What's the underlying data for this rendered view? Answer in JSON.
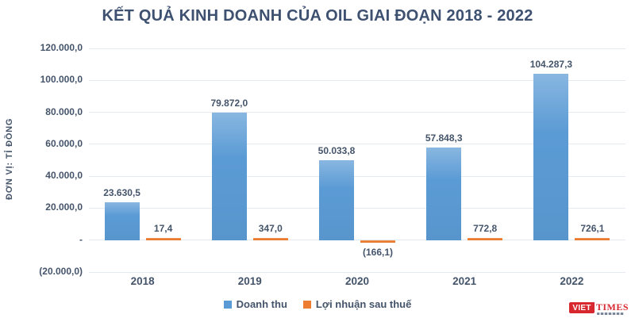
{
  "chart_data": {
    "type": "bar",
    "title": "KẾT QUẢ KINH DOANH CỦA OIL GIAI ĐOẠN 2018 - 2022",
    "ylabel": "ĐƠN VỊ: TỈ ĐỒNG",
    "xlabel": "",
    "categories": [
      "2018",
      "2019",
      "2020",
      "2021",
      "2022"
    ],
    "series": [
      {
        "name": "Doanh thu",
        "color": "#5B9BD5",
        "values": [
          23630.5,
          79872.0,
          50033.8,
          57848.3,
          104287.3
        ],
        "labels": [
          "23.630,5",
          "79.872,0",
          "50.033,8",
          "57.848,3",
          "104.287,3"
        ]
      },
      {
        "name": "Lợi nhuận sau thuế",
        "color": "#ED7D31",
        "values": [
          17.4,
          347.0,
          -166.1,
          772.8,
          726.1
        ],
        "labels": [
          "17,4",
          "347,0",
          "(166,1)",
          "772,8",
          "726,1"
        ]
      }
    ],
    "yticks": [
      {
        "value": 120000,
        "label": "120.000,0"
      },
      {
        "value": 100000,
        "label": "100.000,0"
      },
      {
        "value": 80000,
        "label": "80.000,0"
      },
      {
        "value": 60000,
        "label": "60.000,0"
      },
      {
        "value": 40000,
        "label": "40.000,0"
      },
      {
        "value": 20000,
        "label": "20.000,0"
      },
      {
        "value": 0,
        "label": "-"
      },
      {
        "value": -20000,
        "label": "(20.000,0)"
      }
    ],
    "ylim": [
      -20000,
      120000
    ],
    "grid": true,
    "legend_position": "bottom",
    "text_color": "#44546A",
    "grid_color": "#E4EAF2"
  },
  "logo": {
    "badge": "VIET",
    "name": "TIMES",
    "badge_color": "#D7282F",
    "name_color": "#D7282F"
  }
}
